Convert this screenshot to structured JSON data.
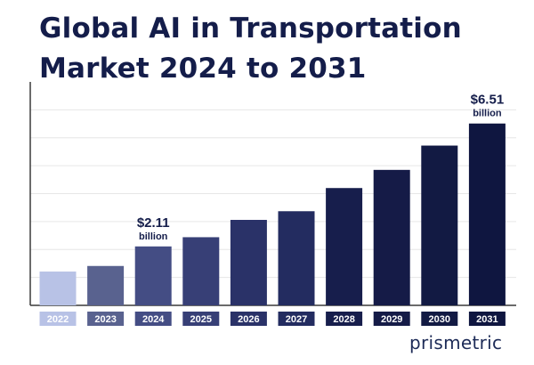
{
  "title_line1": "Global AI in Transportation",
  "title_line2": "Market 2024 to 2031",
  "brand": "prismetric",
  "chart_data": {
    "type": "bar",
    "title": "Global AI in Transportation Market 2024 to 2031",
    "categories": [
      "2022",
      "2023",
      "2024",
      "2025",
      "2026",
      "2027",
      "2028",
      "2029",
      "2030",
      "2031"
    ],
    "values": [
      1.21,
      1.41,
      2.11,
      2.44,
      3.06,
      3.37,
      4.2,
      4.85,
      5.72,
      6.51
    ],
    "ylim": [
      0,
      8.0
    ],
    "grid": true,
    "unit": "billion",
    "colors": [
      "#b8c2e6",
      "#59628f",
      "#444d84",
      "#373f76",
      "#2a3268",
      "#232c60",
      "#171e4c",
      "#151b47",
      "#121a43",
      "#0f1640"
    ],
    "annotations": [
      {
        "category": "2024",
        "value_label": "$2.11",
        "unit_label": "billion"
      },
      {
        "category": "2031",
        "value_label": "$6.51",
        "unit_label": "billion"
      }
    ]
  }
}
